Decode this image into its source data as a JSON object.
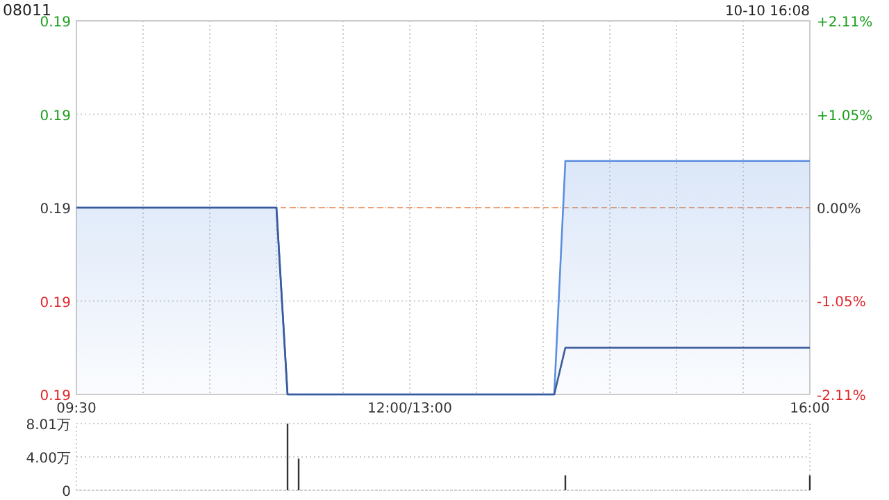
{
  "chart_data": [
    {
      "type": "line",
      "title": "08011",
      "annotations": [
        "10-10 16:08"
      ],
      "categories": [
        "09:30",
        null,
        null,
        null,
        null,
        null,
        null,
        null,
        null,
        null,
        null,
        null,
        null,
        null,
        null,
        null,
        null,
        null,
        null,
        null,
        null,
        null,
        null,
        null,
        null,
        null,
        null,
        null,
        null,
        null,
        "12:00/13:00",
        null,
        null,
        null,
        null,
        null,
        null,
        null,
        null,
        null,
        null,
        null,
        null,
        null,
        null,
        null,
        null,
        null,
        null,
        null,
        null,
        null,
        null,
        null,
        null,
        null,
        null,
        null,
        null,
        null,
        null,
        null,
        null,
        null,
        null,
        null,
        "16:00"
      ],
      "ylim": [
        0.186,
        0.194
      ],
      "yticks": [
        {
          "value": 0.186,
          "label": "0.19"
        },
        {
          "value": 0.188,
          "label": "0.19"
        },
        {
          "value": 0.19,
          "label": "0.19"
        },
        {
          "value": 0.192,
          "label": "0.19"
        },
        {
          "value": 0.194,
          "label": "0.19"
        }
      ],
      "y2lim": [
        -2.11,
        2.11
      ],
      "y2ticks": [
        {
          "value": -2.11,
          "label": "-2.11%"
        },
        {
          "value": -1.05,
          "label": "-1.05%"
        },
        {
          "value": 0,
          "label": "0.00%"
        },
        {
          "value": 1.05,
          "label": "+1.05%"
        },
        {
          "value": 2.11,
          "label": "+2.11%"
        }
      ],
      "grid": true,
      "ref_lines": [
        {
          "axis": "y",
          "value": 0.19,
          "color": "#f0a070",
          "line_style": "dashed"
        }
      ],
      "series": [
        {
          "type": "area",
          "color": "#5b8fe0",
          "values": [
            0.19,
            0.19,
            0.19,
            0.19,
            0.19,
            0.19,
            0.19,
            0.19,
            0.19,
            0.19,
            0.19,
            0.19,
            0.19,
            0.19,
            0.19,
            0.19,
            0.19,
            0.19,
            0.19,
            0.186,
            0.186,
            0.186,
            0.186,
            0.186,
            0.186,
            0.186,
            0.186,
            0.186,
            0.186,
            0.186,
            0.186,
            0.186,
            0.186,
            0.186,
            0.186,
            0.186,
            0.186,
            0.186,
            0.186,
            0.186,
            0.186,
            0.186,
            0.186,
            0.186,
            0.191,
            0.191,
            0.191,
            0.191,
            0.191,
            0.191,
            0.191,
            0.191,
            0.191,
            0.191,
            0.191,
            0.191,
            0.191,
            0.191,
            0.191,
            0.191,
            0.191,
            0.191,
            0.191,
            0.191,
            0.191,
            0.191,
            0.191
          ]
        },
        {
          "type": "line",
          "color": "#3a5a9a",
          "values": [
            0.19,
            0.19,
            0.19,
            0.19,
            0.19,
            0.19,
            0.19,
            0.19,
            0.19,
            0.19,
            0.19,
            0.19,
            0.19,
            0.19,
            0.19,
            0.19,
            0.19,
            0.19,
            0.19,
            0.186,
            0.186,
            0.186,
            0.186,
            0.186,
            0.186,
            0.186,
            0.186,
            0.186,
            0.186,
            0.186,
            0.186,
            0.186,
            0.186,
            0.186,
            0.186,
            0.186,
            0.186,
            0.186,
            0.186,
            0.186,
            0.186,
            0.186,
            0.186,
            0.186,
            0.187,
            0.187,
            0.187,
            0.187,
            0.187,
            0.187,
            0.187,
            0.187,
            0.187,
            0.187,
            0.187,
            0.187,
            0.187,
            0.187,
            0.187,
            0.187,
            0.187,
            0.187,
            0.187,
            0.187,
            0.187,
            0.187,
            0.187
          ]
        }
      ]
    },
    {
      "type": "bar",
      "categories": [
        null,
        null,
        null,
        null,
        null,
        null,
        null,
        null,
        null,
        null,
        null,
        null,
        null,
        null,
        null,
        null,
        null,
        null,
        null,
        null,
        null,
        null,
        null,
        null,
        null,
        null,
        null,
        null,
        null,
        null,
        null,
        null,
        null,
        null,
        null,
        null,
        null,
        null,
        null,
        null,
        null,
        null,
        null,
        null,
        null,
        null,
        null,
        null,
        null,
        null,
        null,
        null,
        null,
        null,
        null,
        null,
        null,
        null,
        null,
        null,
        null,
        null,
        null,
        null,
        null,
        null,
        null
      ],
      "values": [
        null,
        null,
        null,
        null,
        null,
        null,
        null,
        null,
        null,
        null,
        null,
        null,
        null,
        null,
        null,
        null,
        null,
        null,
        null,
        8.01,
        3.8,
        null,
        null,
        null,
        null,
        null,
        null,
        null,
        null,
        null,
        null,
        null,
        null,
        null,
        null,
        null,
        null,
        null,
        null,
        null,
        null,
        null,
        null,
        null,
        1.8,
        null,
        null,
        null,
        null,
        null,
        null,
        null,
        null,
        null,
        null,
        null,
        null,
        null,
        null,
        null,
        null,
        null,
        null,
        null,
        null,
        null,
        1.8
      ],
      "color": "#333333",
      "ylim": [
        0,
        8.01
      ],
      "yticks": [
        0,
        {
          "value": 4,
          "label": "4.00万"
        },
        {
          "value": 8.01,
          "label": "8.01万"
        }
      ],
      "grid": "y",
      "tick_labels": "y"
    }
  ]
}
